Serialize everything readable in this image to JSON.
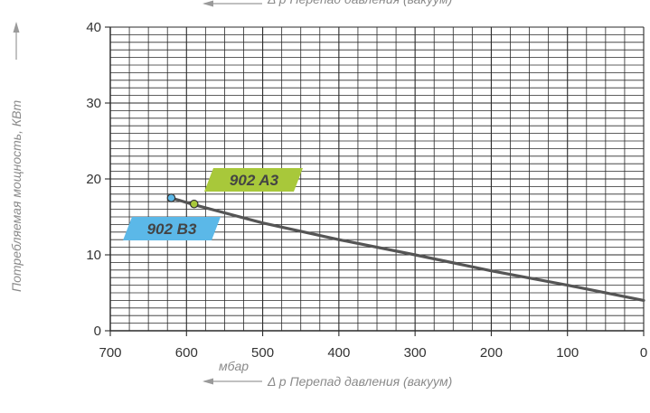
{
  "chart_data": {
    "type": "line",
    "x_axis": {
      "caption": "Δ p Перепад давления (вакуум)",
      "unit": "мбар",
      "range": [
        700,
        0
      ],
      "ticks": [
        "700",
        "600",
        "500",
        "400",
        "300",
        "200",
        "100",
        "0"
      ],
      "tick_values": [
        700,
        600,
        500,
        400,
        300,
        200,
        100,
        0
      ]
    },
    "y_axis": {
      "caption": "Потребляемая мощность, КВт",
      "range": [
        0,
        40
      ],
      "ticks": [
        "0",
        "10",
        "20",
        "30",
        "40"
      ],
      "tick_values": [
        0,
        10,
        20,
        30,
        40
      ]
    },
    "grid": true,
    "grid_minor_x_step": 25,
    "grid_minor_y_step": 1,
    "line": {
      "color": "#555555",
      "x": [
        620,
        590,
        500,
        400,
        300,
        200,
        100,
        0
      ],
      "y": [
        17.5,
        16.6,
        14.2,
        12.0,
        10.0,
        7.9,
        6.0,
        4.0
      ]
    },
    "series": [
      {
        "name": "902 A3",
        "color": "#a8c83a",
        "marker": {
          "x": 590,
          "y": 16.7
        }
      },
      {
        "name": "902 B3",
        "color": "#5bb8e8",
        "marker": {
          "x": 620,
          "y": 17.5
        }
      }
    ]
  }
}
